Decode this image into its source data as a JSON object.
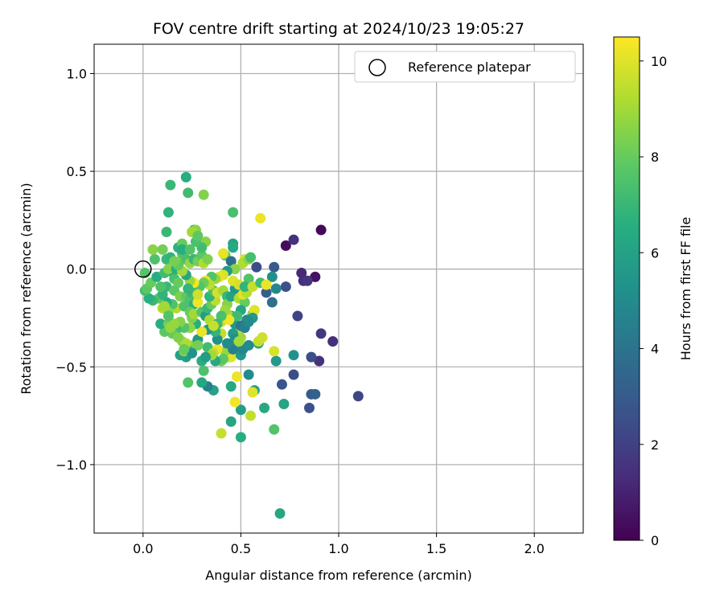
{
  "chart_data": {
    "type": "scatter",
    "title": "FOV centre drift starting at 2024/10/23 19:05:27",
    "xlabel": "Angular distance from reference (arcmin)",
    "ylabel": "Rotation from reference (arcmin)",
    "colorbar_label": "Hours from first FF file",
    "colormap": "viridis",
    "xlim": [
      -0.25,
      2.25
    ],
    "ylim": [
      -1.35,
      1.15
    ],
    "clim": [
      0,
      10.5
    ],
    "x_ticks": [
      0.0,
      0.5,
      1.0,
      1.5,
      2.0
    ],
    "x_tick_labels": [
      "0.0",
      "0.5",
      "1.0",
      "1.5",
      "2.0"
    ],
    "y_ticks": [
      1.0,
      0.5,
      0.0,
      -0.5,
      -1.0
    ],
    "y_tick_labels": [
      "1.0",
      "0.5",
      "0.0",
      "−0.5",
      "−1.0"
    ],
    "cbar_ticks": [
      0,
      2,
      4,
      6,
      8,
      10
    ],
    "cbar_tick_labels": [
      "0",
      "2",
      "4",
      "6",
      "8",
      "10"
    ],
    "grid": true,
    "legend": {
      "label": "Reference platepar",
      "placement": "top-right"
    },
    "reference_point": {
      "x": 0.0,
      "y": 0.0
    },
    "points": [
      {
        "x": 0.91,
        "y": 0.2,
        "c": 0.2
      },
      {
        "x": 0.73,
        "y": 0.12,
        "c": 0.3
      },
      {
        "x": 0.88,
        "y": -0.04,
        "c": 0.5
      },
      {
        "x": 0.77,
        "y": 0.15,
        "c": 1.5
      },
      {
        "x": 0.81,
        "y": -0.02,
        "c": 1.2
      },
      {
        "x": 0.82,
        "y": -0.06,
        "c": 1.3
      },
      {
        "x": 0.84,
        "y": -0.06,
        "c": 1.6
      },
      {
        "x": 0.91,
        "y": -0.33,
        "c": 1.7
      },
      {
        "x": 0.97,
        "y": -0.37,
        "c": 1.4
      },
      {
        "x": 0.9,
        "y": -0.47,
        "c": 1.5
      },
      {
        "x": 0.86,
        "y": -0.45,
        "c": 2.5
      },
      {
        "x": 1.1,
        "y": -0.65,
        "c": 2.2
      },
      {
        "x": 0.85,
        "y": -0.71,
        "c": 2.6
      },
      {
        "x": 0.86,
        "y": -0.64,
        "c": 3.0
      },
      {
        "x": 0.88,
        "y": -0.64,
        "c": 3.2
      },
      {
        "x": 0.77,
        "y": -0.54,
        "c": 2.5
      },
      {
        "x": 0.71,
        "y": -0.59,
        "c": 2.8
      },
      {
        "x": 0.79,
        "y": -0.24,
        "c": 2.1
      },
      {
        "x": 0.73,
        "y": -0.09,
        "c": 2.6
      },
      {
        "x": 0.58,
        "y": 0.01,
        "c": 2.5
      },
      {
        "x": 0.67,
        "y": 0.01,
        "c": 3.0
      },
      {
        "x": 0.63,
        "y": -0.12,
        "c": 3.1
      },
      {
        "x": 0.66,
        "y": -0.17,
        "c": 3.8
      },
      {
        "x": 0.68,
        "y": -0.1,
        "c": 4.8
      },
      {
        "x": 0.66,
        "y": -0.04,
        "c": 5.2
      },
      {
        "x": 0.77,
        "y": -0.44,
        "c": 5.3
      },
      {
        "x": 0.68,
        "y": -0.47,
        "c": 5.6
      },
      {
        "x": 0.7,
        "y": -1.25,
        "c": 6.2
      },
      {
        "x": 0.72,
        "y": -0.69,
        "c": 6.1
      },
      {
        "x": 0.62,
        "y": -0.71,
        "c": 6.3
      },
      {
        "x": 0.57,
        "y": -0.62,
        "c": 6.0
      },
      {
        "x": 0.54,
        "y": -0.54,
        "c": 5.0
      },
      {
        "x": 0.5,
        "y": -0.72,
        "c": 5.8
      },
      {
        "x": 0.5,
        "y": -0.86,
        "c": 6.5
      },
      {
        "x": 0.45,
        "y": -0.78,
        "c": 6.1
      },
      {
        "x": 0.45,
        "y": -0.6,
        "c": 6.3
      },
      {
        "x": 0.36,
        "y": -0.62,
        "c": 6.0
      },
      {
        "x": 0.33,
        "y": -0.6,
        "c": 4.6
      },
      {
        "x": 0.3,
        "y": -0.58,
        "c": 6.2
      },
      {
        "x": 0.23,
        "y": -0.58,
        "c": 7.6
      },
      {
        "x": 0.31,
        "y": -0.52,
        "c": 7.5
      },
      {
        "x": 0.3,
        "y": -0.47,
        "c": 6.5
      },
      {
        "x": 0.22,
        "y": -0.45,
        "c": 5.8
      },
      {
        "x": 0.19,
        "y": -0.44,
        "c": 6.0
      },
      {
        "x": 0.23,
        "y": -0.4,
        "c": 7.0
      },
      {
        "x": 0.27,
        "y": -0.38,
        "c": 8.6
      },
      {
        "x": 0.28,
        "y": -0.36,
        "c": 5.5
      },
      {
        "x": 0.33,
        "y": -0.4,
        "c": 7.2
      },
      {
        "x": 0.4,
        "y": -0.84,
        "c": 9.6
      },
      {
        "x": 0.55,
        "y": -0.75,
        "c": 9.5
      },
      {
        "x": 0.47,
        "y": -0.68,
        "c": 10.3
      },
      {
        "x": 0.56,
        "y": -0.63,
        "c": 10.0
      },
      {
        "x": 0.48,
        "y": -0.55,
        "c": 10.2
      },
      {
        "x": 0.4,
        "y": -0.47,
        "c": 8.3
      },
      {
        "x": 0.44,
        "y": -0.45,
        "c": 9.0
      },
      {
        "x": 0.45,
        "y": -0.45,
        "c": 10.0
      },
      {
        "x": 0.42,
        "y": -0.42,
        "c": 8.8
      },
      {
        "x": 0.38,
        "y": -0.41,
        "c": 10.2
      },
      {
        "x": 0.36,
        "y": -0.43,
        "c": 9.5
      },
      {
        "x": 0.5,
        "y": -0.44,
        "c": 5.5
      },
      {
        "x": 0.46,
        "y": -0.41,
        "c": 4.5
      },
      {
        "x": 0.51,
        "y": -0.41,
        "c": 4.8
      },
      {
        "x": 0.54,
        "y": -0.39,
        "c": 5.0
      },
      {
        "x": 0.59,
        "y": -0.38,
        "c": 6.0
      },
      {
        "x": 0.59,
        "y": -0.37,
        "c": 9.6
      },
      {
        "x": 0.61,
        "y": -0.35,
        "c": 9.7
      },
      {
        "x": 0.67,
        "y": -0.42,
        "c": 9.9
      },
      {
        "x": 0.67,
        "y": -0.82,
        "c": 7.6
      },
      {
        "x": 0.5,
        "y": -0.35,
        "c": 9.0
      },
      {
        "x": 0.48,
        "y": -0.3,
        "c": 9.5
      },
      {
        "x": 0.47,
        "y": -0.28,
        "c": 5.5
      },
      {
        "x": 0.45,
        "y": -0.24,
        "c": 5.0
      },
      {
        "x": 0.44,
        "y": -0.24,
        "c": 9.2
      },
      {
        "x": 0.4,
        "y": -0.27,
        "c": 9.8
      },
      {
        "x": 0.4,
        "y": -0.33,
        "c": 9.5
      },
      {
        "x": 0.38,
        "y": -0.36,
        "c": 5.2
      },
      {
        "x": 0.37,
        "y": -0.32,
        "c": 6.8
      },
      {
        "x": 0.33,
        "y": -0.31,
        "c": 5.5
      },
      {
        "x": 0.3,
        "y": -0.32,
        "c": 10.2
      },
      {
        "x": 0.27,
        "y": -0.28,
        "c": 6.5
      },
      {
        "x": 0.25,
        "y": -0.25,
        "c": 8.4
      },
      {
        "x": 0.24,
        "y": -0.3,
        "c": 8.7
      },
      {
        "x": 0.21,
        "y": -0.3,
        "c": 7.6
      },
      {
        "x": 0.19,
        "y": -0.27,
        "c": 8.5
      },
      {
        "x": 0.17,
        "y": -0.31,
        "c": 7.2
      },
      {
        "x": 0.15,
        "y": -0.33,
        "c": 8.0
      },
      {
        "x": 0.11,
        "y": -0.32,
        "c": 7.8
      },
      {
        "x": 0.09,
        "y": -0.28,
        "c": 6.5
      },
      {
        "x": 0.13,
        "y": -0.28,
        "c": 8.2
      },
      {
        "x": 0.2,
        "y": -0.37,
        "c": 8.8
      },
      {
        "x": 0.22,
        "y": -0.38,
        "c": 9.2
      },
      {
        "x": 0.21,
        "y": -0.42,
        "c": 8.5
      },
      {
        "x": 0.14,
        "y": -0.3,
        "c": 8.8
      },
      {
        "x": 0.17,
        "y": -0.2,
        "c": 9.2
      },
      {
        "x": 0.15,
        "y": -0.18,
        "c": 7.5
      },
      {
        "x": 0.12,
        "y": -0.17,
        "c": 6.5
      },
      {
        "x": 0.1,
        "y": -0.2,
        "c": 9.3
      },
      {
        "x": 0.13,
        "y": -0.22,
        "c": 8.7
      },
      {
        "x": 0.08,
        "y": -0.15,
        "c": 7.8
      },
      {
        "x": 0.05,
        "y": -0.16,
        "c": 7.0
      },
      {
        "x": 0.03,
        "y": -0.15,
        "c": 6.6
      },
      {
        "x": 0.01,
        "y": -0.11,
        "c": 7.2
      },
      {
        "x": 0.02,
        "y": -0.1,
        "c": 7.8
      },
      {
        "x": 0.04,
        "y": -0.07,
        "c": 8.0
      },
      {
        "x": 0.01,
        "y": -0.02,
        "c": 7.6
      },
      {
        "x": 0.06,
        "y": 0.05,
        "c": 7.5
      },
      {
        "x": 0.05,
        "y": 0.1,
        "c": 8.6
      },
      {
        "x": 0.1,
        "y": 0.1,
        "c": 8.2
      },
      {
        "x": 0.12,
        "y": 0.05,
        "c": 7.0
      },
      {
        "x": 0.14,
        "y": 0.06,
        "c": 6.8
      },
      {
        "x": 0.15,
        "y": 0.01,
        "c": 8.5
      },
      {
        "x": 0.14,
        "y": -0.01,
        "c": 6.2
      },
      {
        "x": 0.16,
        "y": -0.05,
        "c": 7.4
      },
      {
        "x": 0.18,
        "y": -0.07,
        "c": 8.0
      },
      {
        "x": 0.12,
        "y": -0.09,
        "c": 7.0
      },
      {
        "x": 0.16,
        "y": -0.11,
        "c": 7.8
      },
      {
        "x": 0.19,
        "y": -0.14,
        "c": 8.4
      },
      {
        "x": 0.22,
        "y": -0.14,
        "c": 7.9
      },
      {
        "x": 0.24,
        "y": -0.15,
        "c": 7.5
      },
      {
        "x": 0.21,
        "y": -0.19,
        "c": 7.5
      },
      {
        "x": 0.26,
        "y": -0.18,
        "c": 6.7
      },
      {
        "x": 0.28,
        "y": -0.17,
        "c": 10.3
      },
      {
        "x": 0.24,
        "y": -0.22,
        "c": 8.0
      },
      {
        "x": 0.26,
        "y": -0.23,
        "c": 9.0
      },
      {
        "x": 0.3,
        "y": -0.22,
        "c": 7.6
      },
      {
        "x": 0.32,
        "y": -0.24,
        "c": 5.8
      },
      {
        "x": 0.33,
        "y": -0.2,
        "c": 7.0
      },
      {
        "x": 0.35,
        "y": -0.18,
        "c": 8.0
      },
      {
        "x": 0.37,
        "y": -0.16,
        "c": 9.4
      },
      {
        "x": 0.34,
        "y": -0.14,
        "c": 6.8
      },
      {
        "x": 0.36,
        "y": -0.11,
        "c": 7.5
      },
      {
        "x": 0.38,
        "y": -0.12,
        "c": 9.8
      },
      {
        "x": 0.41,
        "y": -0.11,
        "c": 9.0
      },
      {
        "x": 0.43,
        "y": -0.14,
        "c": 7.0
      },
      {
        "x": 0.43,
        "y": -0.18,
        "c": 8.5
      },
      {
        "x": 0.45,
        "y": -0.14,
        "c": 6.0
      },
      {
        "x": 0.47,
        "y": -0.1,
        "c": 5.5
      },
      {
        "x": 0.49,
        "y": -0.15,
        "c": 9.2
      },
      {
        "x": 0.52,
        "y": -0.17,
        "c": 8.0
      },
      {
        "x": 0.51,
        "y": -0.13,
        "c": 10.0
      },
      {
        "x": 0.53,
        "y": -0.12,
        "c": 9.3
      },
      {
        "x": 0.54,
        "y": -0.05,
        "c": 7.6
      },
      {
        "x": 0.56,
        "y": -0.23,
        "c": 8.6
      },
      {
        "x": 0.57,
        "y": -0.21,
        "c": 10.0
      },
      {
        "x": 0.56,
        "y": -0.25,
        "c": 5.5
      },
      {
        "x": 0.53,
        "y": -0.26,
        "c": 5.0
      },
      {
        "x": 0.5,
        "y": -0.21,
        "c": 6.2
      },
      {
        "x": 0.48,
        "y": -0.24,
        "c": 7.2
      },
      {
        "x": 0.46,
        "y": -0.33,
        "c": 5.7
      },
      {
        "x": 0.5,
        "y": -0.29,
        "c": 4.2
      },
      {
        "x": 0.52,
        "y": -0.3,
        "c": 4.5
      },
      {
        "x": 0.54,
        "y": -0.27,
        "c": 5.0
      },
      {
        "x": 0.47,
        "y": -0.36,
        "c": 5.2
      },
      {
        "x": 0.49,
        "y": -0.37,
        "c": 9.0
      },
      {
        "x": 0.43,
        "y": -0.38,
        "c": 5.0
      },
      {
        "x": 0.41,
        "y": -0.46,
        "c": 7.8
      },
      {
        "x": 0.37,
        "y": -0.47,
        "c": 6.4
      },
      {
        "x": 0.35,
        "y": -0.44,
        "c": 9.0
      },
      {
        "x": 0.32,
        "y": -0.45,
        "c": 5.8
      },
      {
        "x": 0.28,
        "y": -0.39,
        "c": 8.2
      },
      {
        "x": 0.25,
        "y": -0.43,
        "c": 5.4
      },
      {
        "x": 0.21,
        "y": -0.41,
        "c": 8.0
      },
      {
        "x": 0.18,
        "y": -0.35,
        "c": 8.4
      },
      {
        "x": 0.16,
        "y": -0.28,
        "c": 8.8
      },
      {
        "x": 0.13,
        "y": -0.24,
        "c": 7.6
      },
      {
        "x": 0.11,
        "y": -0.19,
        "c": 9.0
      },
      {
        "x": 0.1,
        "y": -0.13,
        "c": 6.8
      },
      {
        "x": 0.09,
        "y": -0.09,
        "c": 7.5
      },
      {
        "x": 0.07,
        "y": -0.04,
        "c": 6.5
      },
      {
        "x": 0.11,
        "y": -0.02,
        "c": 7.2
      },
      {
        "x": 0.13,
        "y": 0.0,
        "c": 8.5
      },
      {
        "x": 0.17,
        "y": 0.0,
        "c": 6.6
      },
      {
        "x": 0.19,
        "y": 0.04,
        "c": 8.4
      },
      {
        "x": 0.2,
        "y": 0.08,
        "c": 7.6
      },
      {
        "x": 0.18,
        "y": 0.11,
        "c": 6.7
      },
      {
        "x": 0.2,
        "y": 0.13,
        "c": 8.0
      },
      {
        "x": 0.22,
        "y": 0.05,
        "c": 7.4
      },
      {
        "x": 0.24,
        "y": 0.03,
        "c": 8.8
      },
      {
        "x": 0.26,
        "y": 0.05,
        "c": 7.0
      },
      {
        "x": 0.28,
        "y": 0.04,
        "c": 8.2
      },
      {
        "x": 0.3,
        "y": 0.07,
        "c": 7.8
      },
      {
        "x": 0.31,
        "y": 0.03,
        "c": 9.2
      },
      {
        "x": 0.33,
        "y": 0.05,
        "c": 8.4
      },
      {
        "x": 0.32,
        "y": 0.14,
        "c": 8.6
      },
      {
        "x": 0.3,
        "y": 0.11,
        "c": 7.2
      },
      {
        "x": 0.27,
        "y": 0.14,
        "c": 7.4
      },
      {
        "x": 0.26,
        "y": 0.2,
        "c": 7.0
      },
      {
        "x": 0.27,
        "y": 0.2,
        "c": 8.6
      },
      {
        "x": 0.25,
        "y": 0.19,
        "c": 9.0
      },
      {
        "x": 0.28,
        "y": 0.17,
        "c": 7.8
      },
      {
        "x": 0.22,
        "y": 0.47,
        "c": 6.5
      },
      {
        "x": 0.23,
        "y": 0.39,
        "c": 7.2
      },
      {
        "x": 0.31,
        "y": 0.38,
        "c": 8.5
      },
      {
        "x": 0.14,
        "y": 0.43,
        "c": 7.0
      },
      {
        "x": 0.13,
        "y": 0.29,
        "c": 6.8
      },
      {
        "x": 0.46,
        "y": 0.29,
        "c": 7.4
      },
      {
        "x": 0.6,
        "y": 0.26,
        "c": 10.2
      },
      {
        "x": 0.12,
        "y": 0.19,
        "c": 7.0
      },
      {
        "x": 0.2,
        "y": 0.1,
        "c": 6.5
      },
      {
        "x": 0.24,
        "y": 0.1,
        "c": 7.6
      },
      {
        "x": 0.42,
        "y": 0.07,
        "c": 7.8
      },
      {
        "x": 0.41,
        "y": 0.08,
        "c": 10.1
      },
      {
        "x": 0.46,
        "y": 0.13,
        "c": 6.0
      },
      {
        "x": 0.46,
        "y": 0.11,
        "c": 6.4
      },
      {
        "x": 0.45,
        "y": 0.04,
        "c": 3.8
      },
      {
        "x": 0.52,
        "y": 0.05,
        "c": 9.8
      },
      {
        "x": 0.51,
        "y": 0.03,
        "c": 9.2
      },
      {
        "x": 0.54,
        "y": 0.05,
        "c": 8.6
      },
      {
        "x": 0.55,
        "y": 0.06,
        "c": 7.3
      },
      {
        "x": 0.47,
        "y": 0.0,
        "c": 8.6
      },
      {
        "x": 0.43,
        "y": -0.01,
        "c": 5.6
      },
      {
        "x": 0.41,
        "y": -0.03,
        "c": 9.9
      },
      {
        "x": 0.39,
        "y": -0.04,
        "c": 10.1
      },
      {
        "x": 0.37,
        "y": -0.05,
        "c": 8.8
      },
      {
        "x": 0.35,
        "y": -0.04,
        "c": 7.6
      },
      {
        "x": 0.32,
        "y": -0.06,
        "c": 10.2
      },
      {
        "x": 0.34,
        "y": -0.08,
        "c": 9.4
      },
      {
        "x": 0.31,
        "y": -0.07,
        "c": 8.1
      },
      {
        "x": 0.29,
        "y": -0.09,
        "c": 7.6
      },
      {
        "x": 0.26,
        "y": -0.07,
        "c": 10.4
      },
      {
        "x": 0.24,
        "y": -0.06,
        "c": 8.9
      },
      {
        "x": 0.22,
        "y": -0.03,
        "c": 6.2
      },
      {
        "x": 0.2,
        "y": -0.01,
        "c": 9.0
      },
      {
        "x": 0.18,
        "y": 0.02,
        "c": 7.9
      },
      {
        "x": 0.16,
        "y": 0.04,
        "c": 8.3
      },
      {
        "x": 0.25,
        "y": -0.12,
        "c": 7.0
      },
      {
        "x": 0.28,
        "y": -0.13,
        "c": 9.7
      },
      {
        "x": 0.23,
        "y": -0.1,
        "c": 6.9
      },
      {
        "x": 0.46,
        "y": -0.06,
        "c": 10.0
      },
      {
        "x": 0.49,
        "y": -0.08,
        "c": 9.8
      },
      {
        "x": 0.52,
        "y": -0.09,
        "c": 6.8
      },
      {
        "x": 0.56,
        "y": -0.09,
        "c": 9.6
      },
      {
        "x": 0.6,
        "y": -0.07,
        "c": 7.2
      },
      {
        "x": 0.63,
        "y": -0.08,
        "c": 10.2
      },
      {
        "x": 0.42,
        "y": -0.21,
        "c": 8.9
      },
      {
        "x": 0.44,
        "y": -0.26,
        "c": 10.3
      },
      {
        "x": 0.4,
        "y": -0.24,
        "c": 7.4
      },
      {
        "x": 0.34,
        "y": -0.26,
        "c": 9.2
      },
      {
        "x": 0.38,
        "y": -0.28,
        "c": 7.1
      },
      {
        "x": 0.36,
        "y": -0.29,
        "c": 9.6
      }
    ]
  }
}
